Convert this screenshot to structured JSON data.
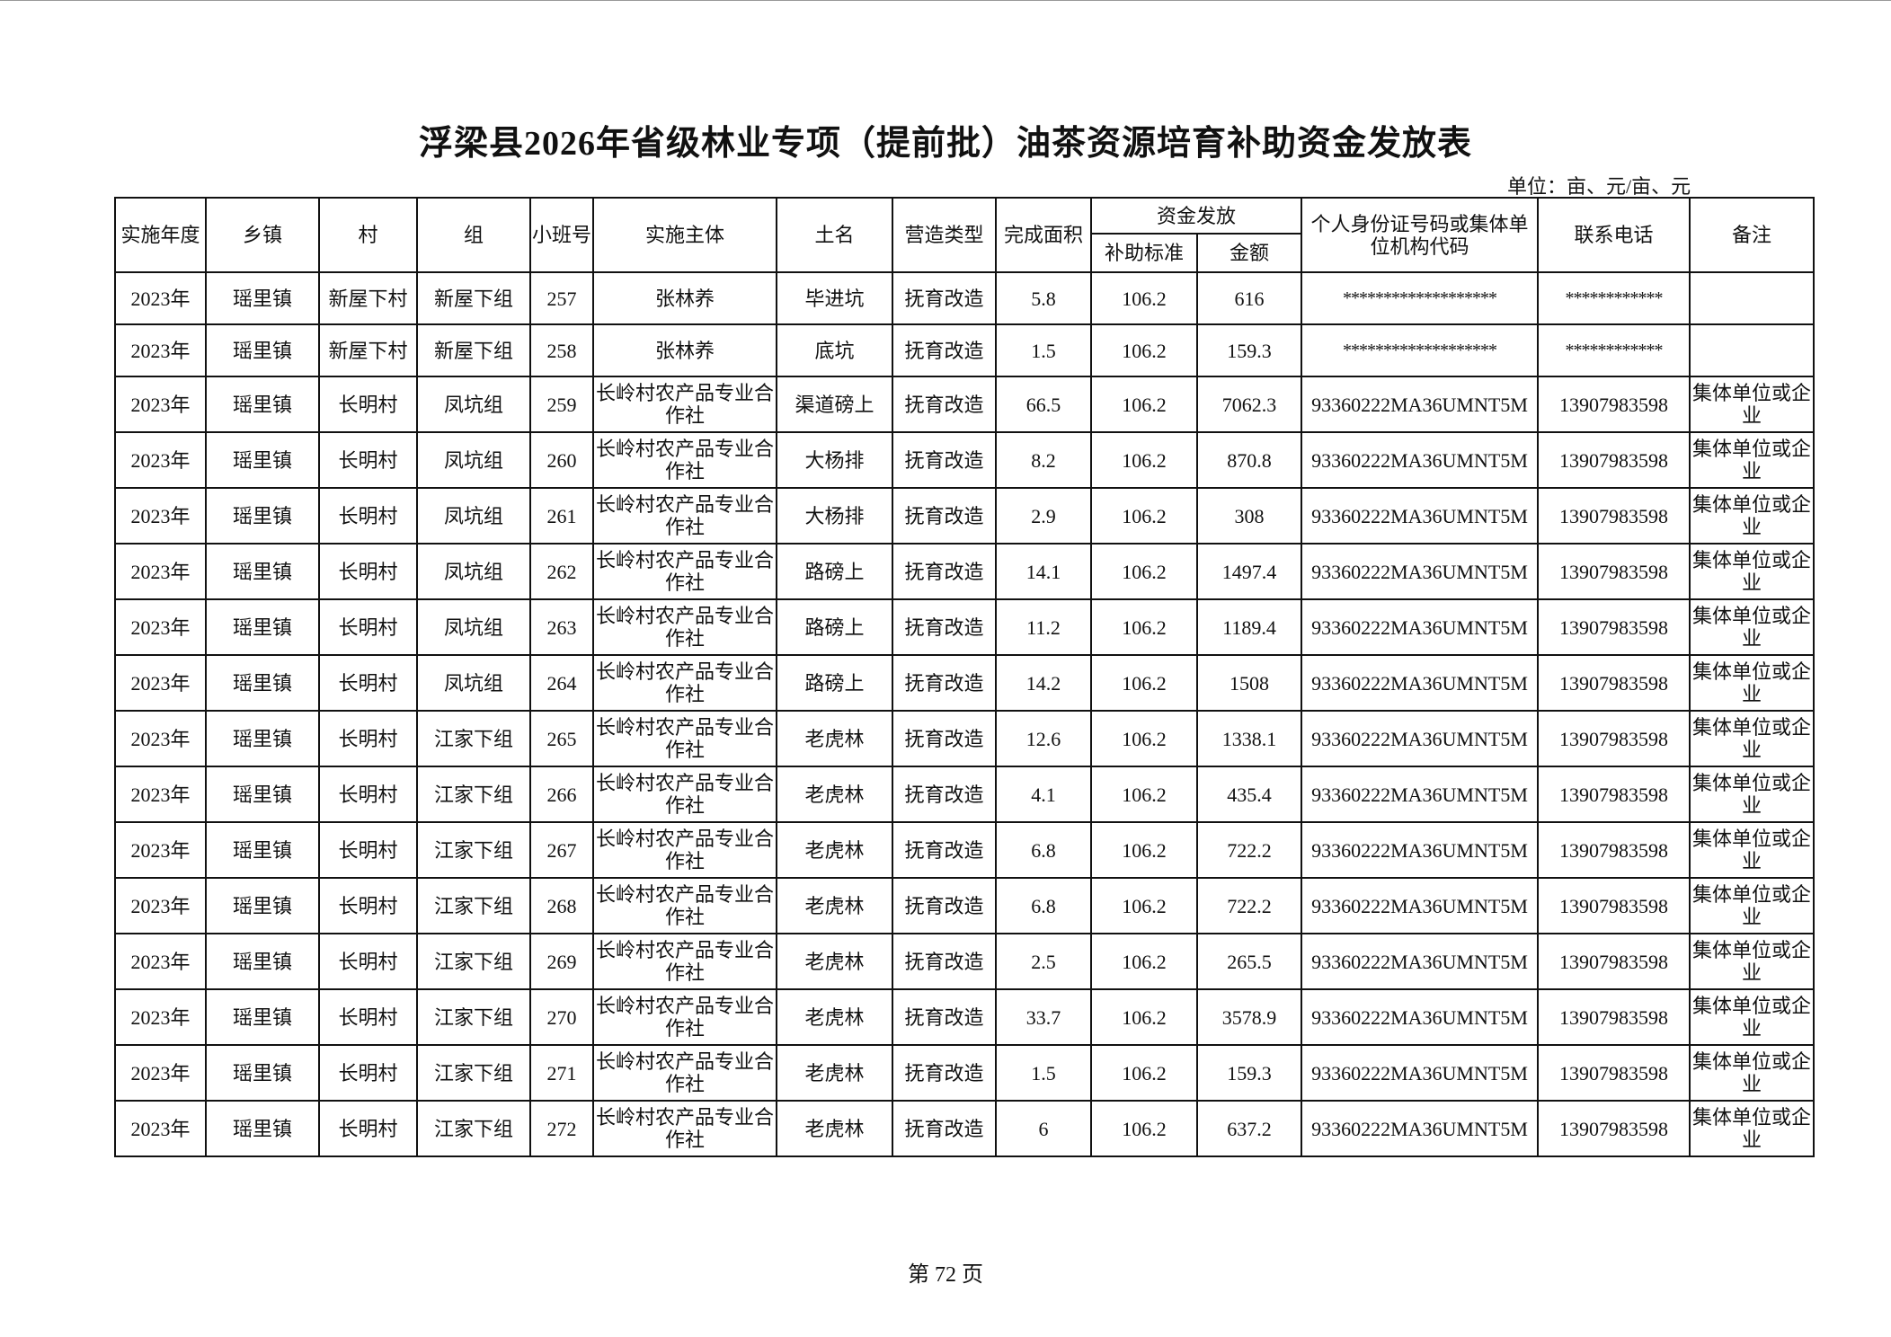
{
  "title": "浮梁县2026年省级林业专项（提前批）油茶资源培育补助资金发放表",
  "unit": "单位：亩、元/亩、元",
  "headers": {
    "year": "实施年度",
    "town": "乡镇",
    "village": "村",
    "group": "组",
    "plot": "小班号",
    "entity": "实施主体",
    "place": "土名",
    "type": "营造类型",
    "area": "完成面积",
    "funds": "资金发放",
    "standard": "补助标准",
    "amount": "金额",
    "id": "个人身份证号码或集体单位机构代码",
    "phone": "联系电话",
    "note": "备注"
  },
  "rows": [
    [
      "2023年",
      "瑶里镇",
      "新屋下村",
      "新屋下组",
      "257",
      "张林养",
      "毕进坑",
      "抚育改造",
      "5.8",
      "106.2",
      "616",
      "*******************",
      "************",
      ""
    ],
    [
      "2023年",
      "瑶里镇",
      "新屋下村",
      "新屋下组",
      "258",
      "张林养",
      "底坑",
      "抚育改造",
      "1.5",
      "106.2",
      "159.3",
      "*******************",
      "************",
      ""
    ],
    [
      "2023年",
      "瑶里镇",
      "长明村",
      "凤坑组",
      "259",
      "长岭村农产品专业合作社",
      "渠道磅上",
      "抚育改造",
      "66.5",
      "106.2",
      "7062.3",
      "93360222MA36UMNT5M",
      "13907983598",
      "集体单位或企业"
    ],
    [
      "2023年",
      "瑶里镇",
      "长明村",
      "凤坑组",
      "260",
      "长岭村农产品专业合作社",
      "大杨排",
      "抚育改造",
      "8.2",
      "106.2",
      "870.8",
      "93360222MA36UMNT5M",
      "13907983598",
      "集体单位或企业"
    ],
    [
      "2023年",
      "瑶里镇",
      "长明村",
      "凤坑组",
      "261",
      "长岭村农产品专业合作社",
      "大杨排",
      "抚育改造",
      "2.9",
      "106.2",
      "308",
      "93360222MA36UMNT5M",
      "13907983598",
      "集体单位或企业"
    ],
    [
      "2023年",
      "瑶里镇",
      "长明村",
      "凤坑组",
      "262",
      "长岭村农产品专业合作社",
      "路磅上",
      "抚育改造",
      "14.1",
      "106.2",
      "1497.4",
      "93360222MA36UMNT5M",
      "13907983598",
      "集体单位或企业"
    ],
    [
      "2023年",
      "瑶里镇",
      "长明村",
      "凤坑组",
      "263",
      "长岭村农产品专业合作社",
      "路磅上",
      "抚育改造",
      "11.2",
      "106.2",
      "1189.4",
      "93360222MA36UMNT5M",
      "13907983598",
      "集体单位或企业"
    ],
    [
      "2023年",
      "瑶里镇",
      "长明村",
      "凤坑组",
      "264",
      "长岭村农产品专业合作社",
      "路磅上",
      "抚育改造",
      "14.2",
      "106.2",
      "1508",
      "93360222MA36UMNT5M",
      "13907983598",
      "集体单位或企业"
    ],
    [
      "2023年",
      "瑶里镇",
      "长明村",
      "江家下组",
      "265",
      "长岭村农产品专业合作社",
      "老虎林",
      "抚育改造",
      "12.6",
      "106.2",
      "1338.1",
      "93360222MA36UMNT5M",
      "13907983598",
      "集体单位或企业"
    ],
    [
      "2023年",
      "瑶里镇",
      "长明村",
      "江家下组",
      "266",
      "长岭村农产品专业合作社",
      "老虎林",
      "抚育改造",
      "4.1",
      "106.2",
      "435.4",
      "93360222MA36UMNT5M",
      "13907983598",
      "集体单位或企业"
    ],
    [
      "2023年",
      "瑶里镇",
      "长明村",
      "江家下组",
      "267",
      "长岭村农产品专业合作社",
      "老虎林",
      "抚育改造",
      "6.8",
      "106.2",
      "722.2",
      "93360222MA36UMNT5M",
      "13907983598",
      "集体单位或企业"
    ],
    [
      "2023年",
      "瑶里镇",
      "长明村",
      "江家下组",
      "268",
      "长岭村农产品专业合作社",
      "老虎林",
      "抚育改造",
      "6.8",
      "106.2",
      "722.2",
      "93360222MA36UMNT5M",
      "13907983598",
      "集体单位或企业"
    ],
    [
      "2023年",
      "瑶里镇",
      "长明村",
      "江家下组",
      "269",
      "长岭村农产品专业合作社",
      "老虎林",
      "抚育改造",
      "2.5",
      "106.2",
      "265.5",
      "93360222MA36UMNT5M",
      "13907983598",
      "集体单位或企业"
    ],
    [
      "2023年",
      "瑶里镇",
      "长明村",
      "江家下组",
      "270",
      "长岭村农产品专业合作社",
      "老虎林",
      "抚育改造",
      "33.7",
      "106.2",
      "3578.9",
      "93360222MA36UMNT5M",
      "13907983598",
      "集体单位或企业"
    ],
    [
      "2023年",
      "瑶里镇",
      "长明村",
      "江家下组",
      "271",
      "长岭村农产品专业合作社",
      "老虎林",
      "抚育改造",
      "1.5",
      "106.2",
      "159.3",
      "93360222MA36UMNT5M",
      "13907983598",
      "集体单位或企业"
    ],
    [
      "2023年",
      "瑶里镇",
      "长明村",
      "江家下组",
      "272",
      "长岭村农产品专业合作社",
      "老虎林",
      "抚育改造",
      "6",
      "106.2",
      "637.2",
      "93360222MA36UMNT5M",
      "13907983598",
      "集体单位或企业"
    ]
  ],
  "footer": "第 72 页"
}
